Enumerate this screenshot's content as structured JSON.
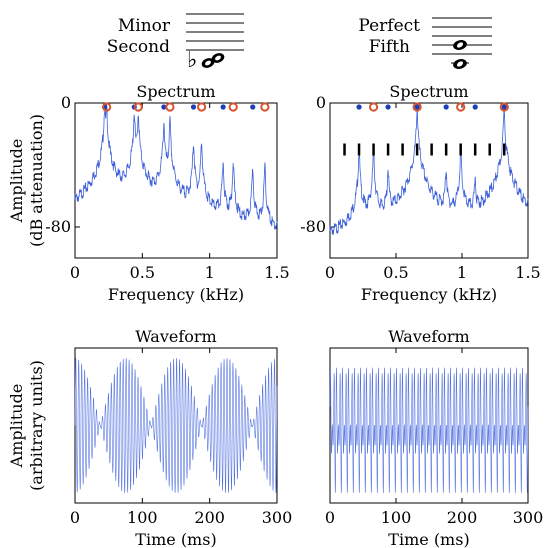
{
  "intervals": [
    {
      "name_line1": "Minor",
      "name_line2": "Second"
    },
    {
      "name_line1": "Perfect",
      "name_line2": "Fifth"
    }
  ],
  "colors": {
    "spectrum_line": "#3d5fd9",
    "waveform_line": "#4f6fe0",
    "fundamental_dot": "#1b3fb8",
    "harmonic_ring": "#d9542e",
    "axis": "#000000",
    "subharmonic_tick": "#000000"
  },
  "chart_data": [
    {
      "type": "line",
      "title": "Spectrum",
      "xlabel": "Frequency (kHz)",
      "ylabel": "Amplitude\n(dB attenuation)",
      "xlim": [
        0,
        1.5
      ],
      "ylim": [
        -100,
        0
      ],
      "xticks": [
        0,
        0.5,
        1,
        1.5
      ],
      "xtick_labels": [
        "0",
        "0.5",
        "1",
        "1.5"
      ],
      "yticks": [
        0,
        -80
      ],
      "ytick_labels": [
        "0",
        "-80"
      ],
      "peaks_khz": [
        0.22,
        0.235,
        0.44,
        0.47,
        0.66,
        0.705,
        0.88,
        0.94,
        1.1,
        1.175,
        1.32,
        1.41
      ],
      "peak_heights_db": [
        -3,
        -3,
        -6,
        -6,
        -12,
        -12,
        -25,
        -25,
        -38,
        -38,
        -42,
        -42
      ],
      "tone_a_harmonics_khz": [
        0.22,
        0.44,
        0.66,
        0.88,
        1.1,
        1.32
      ],
      "tone_b_harmonics_khz": [
        0.235,
        0.47,
        0.705,
        0.94,
        1.175,
        1.41
      ],
      "markers_db": 0
    },
    {
      "type": "line",
      "title": "Spectrum",
      "xlabel": "Frequency (kHz)",
      "ylabel": "",
      "xlim": [
        0,
        1.5
      ],
      "ylim": [
        -100,
        0
      ],
      "xticks": [
        0,
        0.5,
        1,
        1.5
      ],
      "xtick_labels": [
        "0",
        "0.5",
        "1",
        "1.5"
      ],
      "yticks": [
        0,
        -80
      ],
      "ytick_labels": [
        "0",
        "-80"
      ],
      "peaks_khz": [
        0.22,
        0.33,
        0.44,
        0.66,
        0.88,
        0.99,
        1.1,
        1.32
      ],
      "peak_heights_db": [
        -30,
        -30,
        -42,
        -3,
        -42,
        -30,
        -48,
        -3
      ],
      "tone_a_harmonics_khz": [
        0.22,
        0.44,
        0.66,
        0.88,
        1.1,
        1.32
      ],
      "tone_b_harmonics_khz": [
        0.33,
        0.66,
        0.99,
        1.32
      ],
      "subharmonic_khz": [
        0.11,
        0.22,
        0.33,
        0.44,
        0.55,
        0.66,
        0.77,
        0.88,
        0.99,
        1.1,
        1.21,
        1.32
      ],
      "subharmonic_db": -30,
      "markers_db": 0
    },
    {
      "type": "line",
      "title": "Waveform",
      "xlabel": "Time (ms)",
      "ylabel": "Amplitude\n(arbitrary units)",
      "xlim": [
        0,
        300
      ],
      "xticks": [
        0,
        100,
        200,
        300
      ],
      "xtick_labels": [
        "0",
        "100",
        "200",
        "300"
      ],
      "carrier_hz": 227,
      "beat_hz": 13.3
    },
    {
      "type": "line",
      "title": "Waveform",
      "xlabel": "Time (ms)",
      "ylabel": "",
      "xlim": [
        0,
        300
      ],
      "xticks": [
        0,
        100,
        200,
        300
      ],
      "xtick_labels": [
        "0",
        "100",
        "200",
        "300"
      ],
      "fundamental_hz": 110,
      "tone_a_hz": 220,
      "tone_b_hz": 330
    }
  ]
}
